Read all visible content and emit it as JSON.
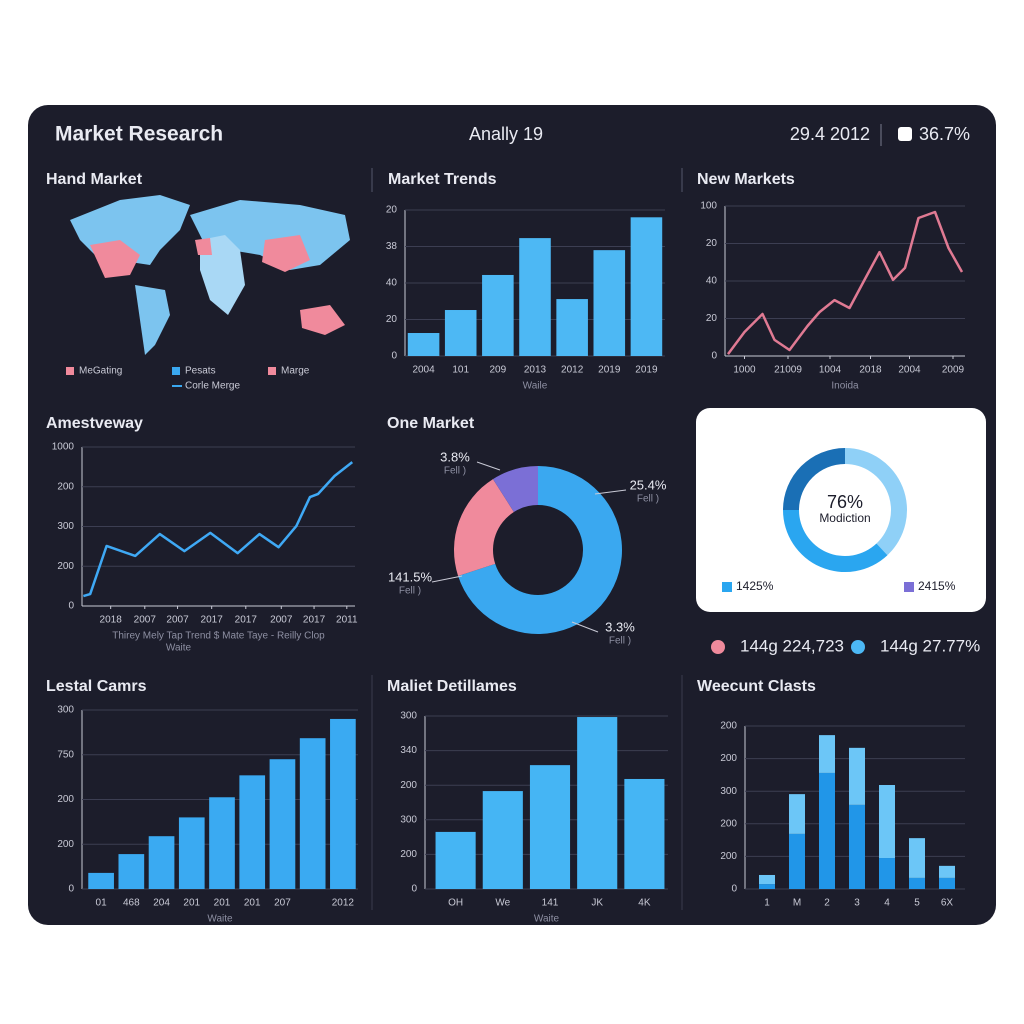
{
  "header": {
    "title": "Market Research",
    "subtitle": "Anally 19",
    "date": "29.4 2012",
    "stat": "36.7%"
  },
  "summary": [
    {
      "text": "144g 224,723",
      "color": "#f08a9c"
    },
    {
      "text": "144g 27.77%",
      "color": "#4cb8f5"
    }
  ],
  "chart_data": [
    {
      "type": "map",
      "title": "Hand Market",
      "legend": [
        {
          "name": "MeGating",
          "color": "#f08a9c"
        },
        {
          "name": "Pesats",
          "color": "#3aa8f0"
        },
        {
          "name": "Marge",
          "color": "#f08a9c"
        },
        {
          "name": "Corle Merge",
          "color": "#3aa8f0",
          "line": true
        }
      ]
    },
    {
      "type": "bar",
      "title": "Market Trends",
      "x_label": "Waile",
      "color": "#4db8f4",
      "categories": [
        "2004",
        "101",
        "209",
        "2013",
        "2012",
        "2019",
        "2019"
      ],
      "values": [
        6.3,
        12.6,
        22.2,
        32.3,
        15.6,
        29,
        38
      ],
      "ylim": [
        0,
        40
      ],
      "yticks": [
        0,
        {
          "value": 10,
          "label": "20"
        },
        {
          "value": 20,
          "label": "40"
        },
        {
          "value": 30,
          "label": "38"
        },
        {
          "value": 40,
          "label": "20"
        }
      ],
      "grid": true
    },
    {
      "type": "line",
      "title": "New Markets",
      "x_label": "Inoida",
      "color": "#e07a93",
      "x": [
        0.2,
        1.3,
        2.5,
        3.3,
        4.3,
        5.5,
        6.3,
        7.3,
        8.3,
        9.3,
        10.3,
        11.2,
        12,
        12.9,
        14,
        14.9,
        15.8
      ],
      "values": [
        0.5,
        6.4,
        11.2,
        4.3,
        1.6,
        8,
        11.7,
        14.9,
        12.8,
        20.3,
        27.7,
        20.3,
        23.5,
        36.8,
        38.4,
        28.8,
        22.4
      ],
      "xlim": [
        0,
        16
      ],
      "xticks": [
        {
          "value": 1.3,
          "label": "1000"
        },
        {
          "value": 4.2,
          "label": "21009"
        },
        {
          "value": 7,
          "label": "1004"
        },
        {
          "value": 9.7,
          "label": "2018"
        },
        {
          "value": 12.3,
          "label": "2004"
        },
        {
          "value": 15.2,
          "label": "2009"
        }
      ],
      "ylim": [
        0,
        40
      ],
      "yticks": [
        0,
        {
          "value": 10,
          "label": "20"
        },
        {
          "value": 20,
          "label": "40"
        },
        {
          "value": 30,
          "label": "20"
        },
        {
          "value": 40,
          "label": "100"
        }
      ],
      "grid": true
    },
    {
      "type": "line",
      "title": "Amestveway",
      "x_label": "Thirey Mely Tap Trend $ Mate Taye - Reilly Clop",
      "x_note": "Waite",
      "color": "#3fa9f5",
      "x": [
        0.1,
        0.6,
        1.8,
        3.9,
        5.7,
        7.5,
        9.4,
        11.4,
        13,
        14.4,
        15.7,
        16.7,
        17.3,
        18.5,
        19.8
      ],
      "values": [
        2.5,
        3,
        15.1,
        12.6,
        18.1,
        13.8,
        18.4,
        13.3,
        18.1,
        14.8,
        20.1,
        27.4,
        28.2,
        32.7,
        36.2
      ],
      "xlim": [
        0,
        20
      ],
      "xticks": [
        {
          "value": 2.1,
          "label": "2018"
        },
        {
          "value": 4.6,
          "label": "2007"
        },
        {
          "value": 7,
          "label": "2007"
        },
        {
          "value": 9.5,
          "label": "2017"
        },
        {
          "value": 12,
          "label": "2017"
        },
        {
          "value": 14.6,
          "label": "2007"
        },
        {
          "value": 17,
          "label": "2017"
        },
        {
          "value": 19.4,
          "label": "2011"
        }
      ],
      "ylim": [
        0,
        40
      ],
      "yticks": [
        0,
        {
          "value": 10,
          "label": "200"
        },
        {
          "value": 20,
          "label": "300"
        },
        {
          "value": 30,
          "label": "200"
        },
        {
          "value": 40,
          "label": "1000"
        }
      ],
      "grid": true
    },
    {
      "type": "pie",
      "title": "One Market",
      "values": [
        70,
        21,
        9
      ],
      "colors": [
        "#3aa8f0",
        "#f08a9c",
        "#7b6fd6"
      ],
      "annotations": [
        {
          "text": "3.8%",
          "note": "Fell )"
        },
        {
          "text": "25.4%",
          "note": "Fell )"
        },
        {
          "text": "141.5%",
          "note": "Fell )"
        },
        {
          "text": "3.3%",
          "note": "Fell )"
        }
      ]
    },
    {
      "type": "pie",
      "center_value": "76%",
      "center_label": "Modiction",
      "values": [
        38,
        37,
        25
      ],
      "colors": [
        "#8fd0f7",
        "#2aa6f0",
        "#1a6fb5"
      ],
      "legend": [
        {
          "name": "1425%",
          "color": "#2aa6f0"
        },
        {
          "name": "2415%",
          "color": "#7b6fd6"
        }
      ]
    },
    {
      "type": "bar",
      "title": "Lestal Camrs",
      "x_label": "Waite",
      "color": "#3aaaf2",
      "categories": [
        "01",
        "468",
        "204",
        "201",
        "201",
        "201",
        "207",
        null,
        "2012"
      ],
      "values": [
        3.6,
        7.8,
        11.8,
        16,
        20.5,
        25.4,
        29,
        33.7,
        38
      ],
      "ylim": [
        0,
        40
      ],
      "yticks": [
        0,
        {
          "value": 10,
          "label": "200"
        },
        {
          "value": 20,
          "label": "200"
        },
        {
          "value": 30,
          "label": "750"
        },
        {
          "value": 40,
          "label": "300"
        }
      ],
      "grid": true
    },
    {
      "type": "bar",
      "title": "Maliet Detillames",
      "x_label": "Waite",
      "color": "#45b5f4",
      "categories": [
        "OH",
        "We",
        "141",
        "JK",
        "4K"
      ],
      "values": [
        16.5,
        28.3,
        35.8,
        49.7,
        31.8
      ],
      "ylim": [
        0,
        50
      ],
      "yticks": [
        0,
        {
          "value": 10,
          "label": "200"
        },
        {
          "value": 20,
          "label": "300"
        },
        {
          "value": 30,
          "label": "200"
        },
        {
          "value": 40,
          "label": "340"
        },
        {
          "value": 50,
          "label": "300"
        }
      ],
      "grid": true
    },
    {
      "type": "stacked_bar",
      "title": "Weecunt Clasts",
      "categories": [
        "1",
        "M",
        "2",
        "3",
        "4",
        "5",
        "6X"
      ],
      "series": [
        {
          "color": "#2196e8",
          "values": [
            1.5,
            16.9,
            35.6,
            25.8,
            9.5,
            3.4,
            3.4
          ]
        },
        {
          "color": "#6cc6f7",
          "values": [
            2.8,
            12.2,
            11.6,
            17.5,
            22.4,
            12.2,
            3.7
          ]
        }
      ],
      "ylim": [
        0,
        50
      ],
      "yticks": [
        0,
        {
          "value": 10,
          "label": "200"
        },
        {
          "value": 20,
          "label": "200"
        },
        {
          "value": 30,
          "label": "300"
        },
        {
          "value": 40,
          "label": "200"
        },
        {
          "value": 50,
          "label": "200"
        }
      ],
      "grid": true
    }
  ]
}
